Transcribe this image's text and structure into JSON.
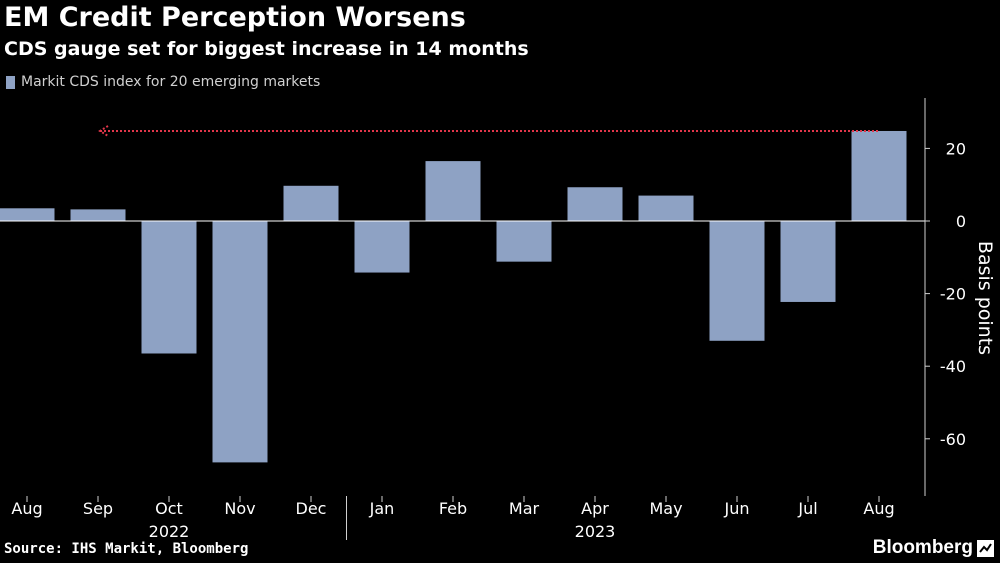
{
  "header": {
    "title": "EM Credit Perception Worsens",
    "subtitle": "CDS gauge set for biggest increase in 14 months"
  },
  "footer": {
    "source": "Source: IHS Markit, Bloomberg",
    "brand": "Bloomberg"
  },
  "colors": {
    "bar": "#8ea2c4",
    "reference_line": "#e0364a",
    "axis": "#d0d0d0",
    "background": "#000000"
  },
  "chart_data": {
    "type": "bar",
    "title": "EM Credit Perception Worsens",
    "subtitle": "CDS gauge set for biggest increase in 14 months",
    "categories": [
      "Aug",
      "Sep",
      "Oct",
      "Nov",
      "Dec",
      "Jan",
      "Feb",
      "Mar",
      "Apr",
      "May",
      "Jun",
      "Jul",
      "Aug"
    ],
    "year_labels": [
      {
        "label": "2022",
        "category_index": 2
      },
      {
        "label": "2023",
        "category_index": 8
      }
    ],
    "series": [
      {
        "name": "Markit CDS index for 20 emerging markets",
        "values": [
          3.5,
          3.2,
          -36.5,
          -66.5,
          9.7,
          -14.2,
          16.5,
          -11.2,
          9.3,
          7.0,
          -33.0,
          -22.3,
          24.8
        ]
      }
    ],
    "ylabel": "Basis points",
    "xlabel": "",
    "ylim": [
      -76,
      33
    ],
    "yticks": [
      20,
      0,
      -20,
      -40,
      -60
    ],
    "reference_line": {
      "value": 24.8,
      "style": "dotted",
      "arrow": "left"
    },
    "legend_position": "top-left",
    "grid": false
  }
}
